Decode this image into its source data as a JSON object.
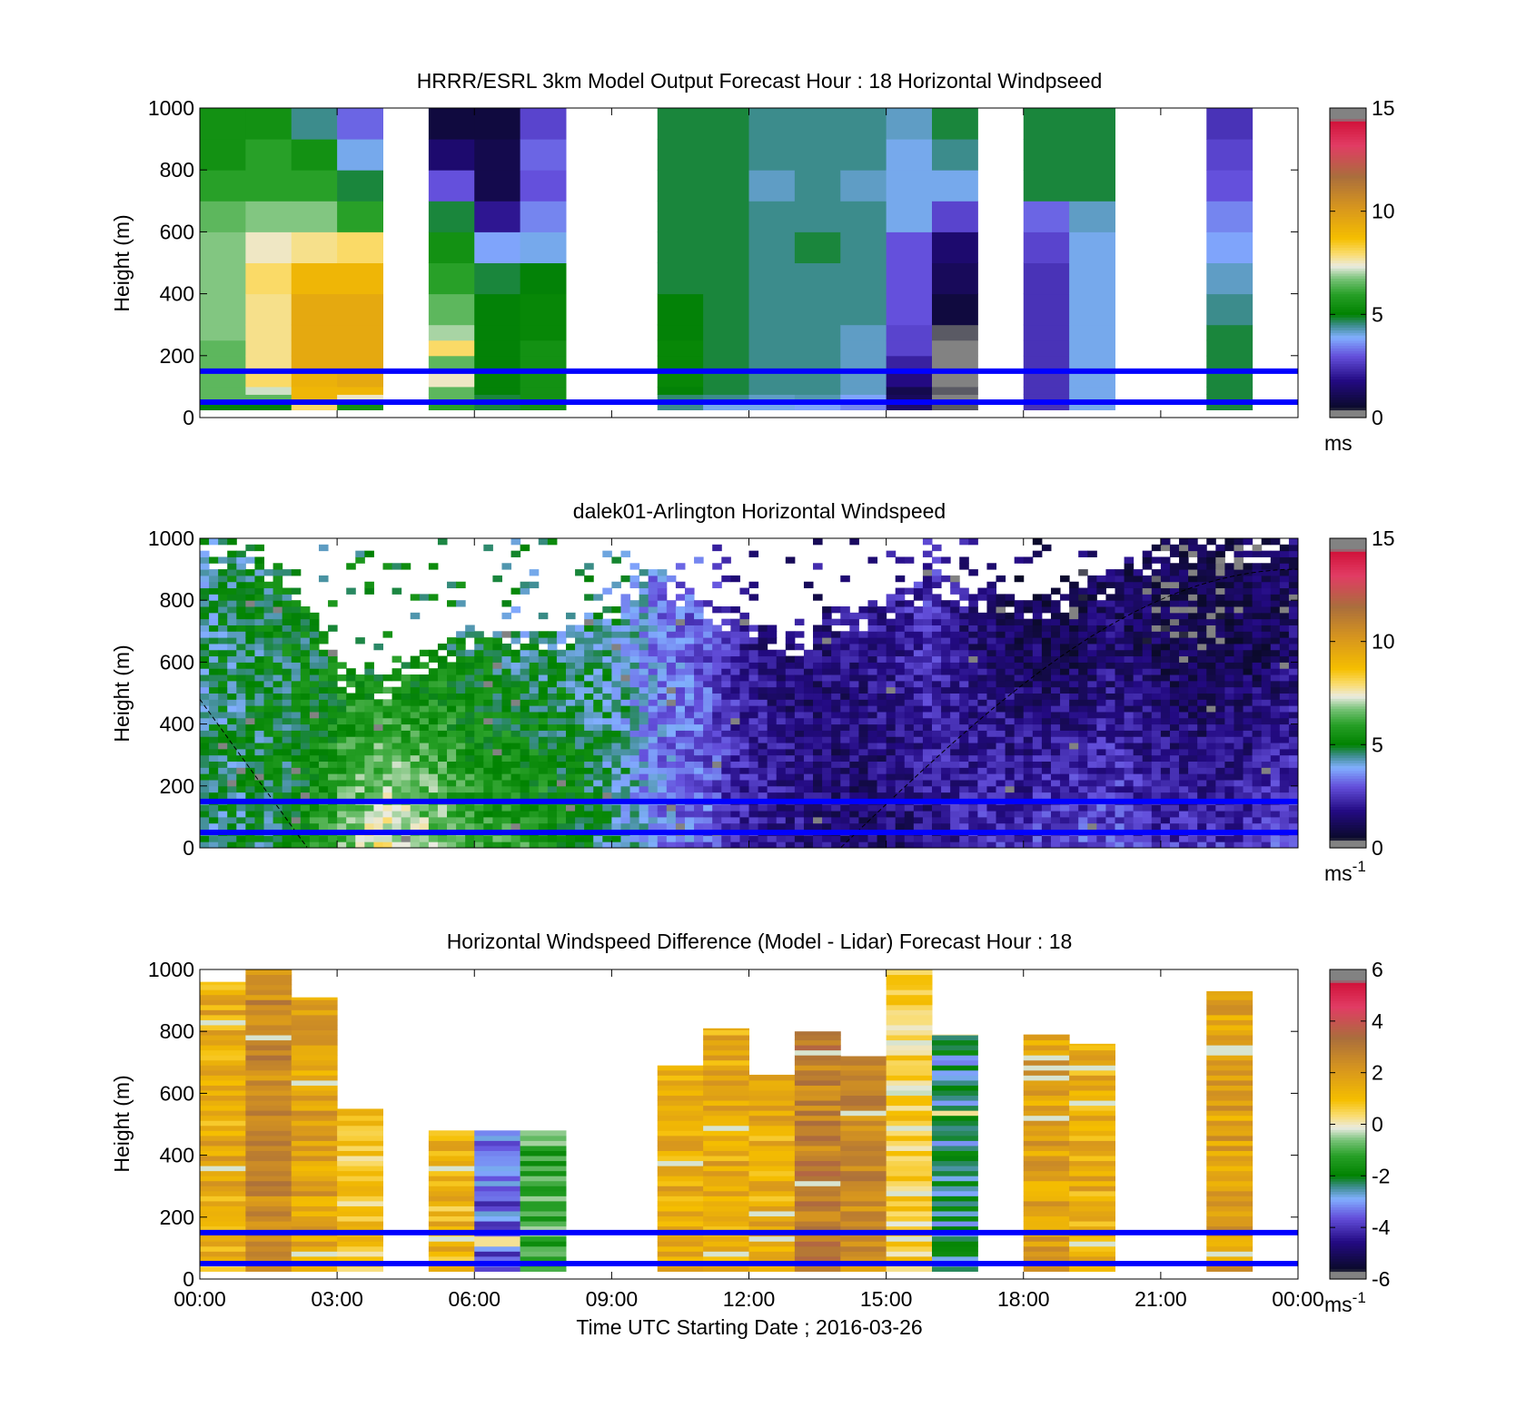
{
  "figure": {
    "xlabel": "Time UTC  Starting Date ; 2016-03-26",
    "xticks": [
      "00:00",
      "03:00",
      "06:00",
      "09:00",
      "12:00",
      "15:00",
      "18:00",
      "21:00",
      "00:00"
    ]
  },
  "chart_data": [
    {
      "type": "heatmap",
      "title": "HRRR/ESRL 3km Model Output   Forecast Hour : 18 Horizontal Windpseed",
      "ylabel": "Height (m)",
      "xlim_hours": [
        0,
        24
      ],
      "ylim": [
        0,
        1000
      ],
      "yticks": [
        "0",
        "200",
        "400",
        "600",
        "800",
        "1000"
      ],
      "colorbar": {
        "min": 0,
        "max": 15,
        "ticks": [
          "0",
          "5",
          "10",
          "15"
        ],
        "unit": "ms",
        "unit_sup": ""
      },
      "colors": {
        "reference_lines": "#0000ff"
      },
      "reference_lines_m": [
        50,
        150
      ],
      "levels_m": [
        25,
        50,
        75,
        100,
        150,
        200,
        250,
        300,
        400,
        500,
        600,
        700,
        800,
        900,
        1000
      ],
      "columns": [
        {
          "hour": 0,
          "speeds": [
            3.0,
            5.0,
            6.5,
            6.5,
            6.5,
            6.5,
            6.5,
            6.8,
            6.8,
            6.8,
            6.8,
            6.5,
            6.0,
            5.5,
            5.5
          ]
        },
        {
          "hour": 1,
          "speeds": [
            3.5,
            5.0,
            6.5,
            7.2,
            8.0,
            7.8,
            7.8,
            7.8,
            7.8,
            8.0,
            7.5,
            6.8,
            6.0,
            6.0,
            5.5
          ]
        },
        {
          "hour": 2,
          "speeds": [
            4.0,
            8.0,
            9.0,
            9.0,
            9.2,
            9.5,
            9.5,
            9.5,
            9.5,
            9.0,
            7.8,
            6.8,
            6.0,
            5.5,
            4.5
          ]
        },
        {
          "hour": 3,
          "speeds": [
            4.5,
            5.5,
            7.5,
            9.0,
            9.5,
            9.5,
            9.5,
            9.5,
            9.5,
            9.0,
            8.0,
            6.0,
            4.8,
            4.0,
            3.2
          ]
        },
        {
          "hour": 5,
          "speeds": [
            5.5,
            6.0,
            6.5,
            6.5,
            7.5,
            6.5,
            8.0,
            7.0,
            6.5,
            6.0,
            5.5,
            4.8,
            3.0,
            1.5,
            0.8
          ]
        },
        {
          "hour": 6,
          "speeds": [
            5.0,
            4.8,
            4.8,
            5.0,
            5.0,
            5.0,
            5.0,
            5.0,
            5.0,
            4.8,
            3.8,
            2.0,
            1.0,
            1.0,
            0.8
          ]
        },
        {
          "hour": 7,
          "speeds": [
            3.0,
            5.5,
            5.5,
            5.5,
            5.5,
            5.5,
            5.5,
            5.2,
            5.2,
            5.0,
            4.0,
            3.5,
            3.0,
            3.2,
            2.8
          ]
        },
        {
          "hour": 10,
          "speeds": [
            3.5,
            4.5,
            4.6,
            5.0,
            5.2,
            5.2,
            5.2,
            5.0,
            5.0,
            4.8,
            4.8,
            4.8,
            4.8,
            4.8,
            4.8
          ]
        },
        {
          "hour": 11,
          "speeds": [
            3.0,
            4.0,
            4.5,
            4.8,
            4.8,
            4.8,
            4.8,
            4.8,
            4.8,
            4.8,
            4.8,
            4.8,
            4.8,
            4.8,
            4.8
          ]
        },
        {
          "hour": 12,
          "speeds": [
            3.5,
            4.0,
            4.2,
            4.5,
            4.5,
            4.5,
            4.5,
            4.5,
            4.5,
            4.5,
            4.5,
            4.5,
            4.2,
            4.5,
            4.5
          ]
        },
        {
          "hour": 13,
          "speeds": [
            3.2,
            3.8,
            4.3,
            4.5,
            4.5,
            4.5,
            4.5,
            4.5,
            4.5,
            4.5,
            4.8,
            4.5,
            4.5,
            4.5,
            4.5
          ]
        },
        {
          "hour": 14,
          "speeds": [
            3.0,
            3.5,
            3.8,
            4.2,
            4.2,
            4.2,
            4.2,
            4.2,
            4.5,
            4.5,
            4.5,
            4.5,
            4.2,
            4.5,
            4.5
          ]
        },
        {
          "hour": 15,
          "speeds": [
            2.5,
            1.5,
            1.2,
            1.0,
            1.8,
            2.2,
            2.8,
            2.8,
            3.0,
            3.0,
            3.0,
            4.0,
            4.0,
            4.0,
            4.2
          ]
        },
        {
          "hour": 16,
          "speeds": [
            0.8,
            0.4,
            0.3,
            0.4,
            0.3,
            0.2,
            0.3,
            0.4,
            0.8,
            1.2,
            1.5,
            2.8,
            4.0,
            4.5,
            4.8
          ]
        },
        {
          "hour": 18,
          "speeds": [
            2.5,
            2.5,
            2.5,
            2.5,
            2.5,
            2.5,
            2.5,
            2.5,
            2.5,
            2.5,
            2.8,
            3.2,
            4.8,
            4.8,
            4.8
          ]
        },
        {
          "hour": 19,
          "speeds": [
            4.0,
            4.0,
            4.0,
            4.0,
            4.0,
            4.0,
            4.0,
            4.0,
            4.0,
            4.0,
            4.0,
            4.2,
            4.8,
            4.8,
            4.8
          ]
        },
        {
          "hour": 22,
          "speeds": [
            4.8,
            4.8,
            4.8,
            4.8,
            4.8,
            4.8,
            4.8,
            4.8,
            4.5,
            4.2,
            3.8,
            3.5,
            3.0,
            2.8,
            2.5
          ]
        }
      ]
    },
    {
      "type": "heatmap",
      "title": "dalek01-Arlington  Horizontal Windspeed",
      "ylabel": "Height (m)",
      "xlim_hours": [
        0,
        24
      ],
      "ylim": [
        0,
        1000
      ],
      "yticks": [
        "0",
        "200",
        "400",
        "600",
        "800",
        "1000"
      ],
      "colorbar": {
        "min": 0,
        "max": 15,
        "ticks": [
          "0",
          "5",
          "10",
          "15"
        ],
        "unit": "ms",
        "unit_sup": "-1"
      },
      "colors": {
        "reference_lines": "#0000ff"
      },
      "reference_lines_m": [
        50,
        150
      ],
      "time_anchor_hours": [
        0,
        2,
        3,
        4,
        5,
        6,
        7,
        8,
        9,
        10,
        11,
        12,
        13,
        14,
        15,
        16,
        17,
        18,
        19,
        20,
        21,
        22,
        23,
        24
      ],
      "low_level_speed": [
        4.5,
        5.0,
        6.5,
        7.5,
        7.0,
        6.0,
        6.0,
        5.5,
        4.5,
        3.5,
        3.2,
        2.2,
        2.0,
        1.5,
        1.5,
        1.8,
        2.5,
        2.5,
        3.0,
        3.0,
        2.5,
        2.5,
        2.5,
        3.0
      ],
      "upper_level_speed": [
        4.5,
        5.0,
        5.0,
        5.0,
        5.0,
        5.0,
        4.5,
        4.5,
        4.5,
        3.5,
        3.0,
        2.0,
        1.5,
        1.8,
        2.0,
        2.5,
        1.5,
        1.2,
        1.0,
        1.5,
        1.0,
        0.8,
        1.0,
        1.5
      ],
      "data_top_m": [
        1000,
        900,
        600,
        550,
        650,
        700,
        700,
        700,
        800,
        900,
        800,
        750,
        700,
        750,
        800,
        900,
        850,
        800,
        850,
        900,
        1000,
        1000,
        1000,
        1000
      ]
    },
    {
      "type": "heatmap",
      "title": "Horizontal Windspeed Difference (Model - Lidar) Forecast Hour : 18",
      "ylabel": "Height (m)",
      "xlim_hours": [
        0,
        24
      ],
      "ylim": [
        0,
        1000
      ],
      "yticks": [
        "0",
        "200",
        "400",
        "600",
        "800",
        "1000"
      ],
      "colorbar": {
        "min": -6,
        "max": 6,
        "ticks": [
          "-6",
          "-4",
          "-2",
          "0",
          "2",
          "4",
          "6"
        ],
        "unit": "ms",
        "unit_sup": "-1"
      },
      "colors": {
        "reference_lines": "#0000ff"
      },
      "reference_lines_m": [
        50,
        150
      ],
      "columns": [
        {
          "hour": 0,
          "top_m": 960,
          "base_diff": 1.5
        },
        {
          "hour": 1,
          "top_m": 1000,
          "base_diff": 2.5
        },
        {
          "hour": 2,
          "top_m": 910,
          "base_diff": 1.8
        },
        {
          "hour": 3,
          "top_m": 550,
          "base_diff": 0.8
        },
        {
          "hour": 5,
          "top_m": 480,
          "base_diff": 1.2
        },
        {
          "hour": 6,
          "top_m": 480,
          "base_diff": -3.5
        },
        {
          "hour": 7,
          "top_m": 480,
          "base_diff": -1.2
        },
        {
          "hour": 10,
          "top_m": 690,
          "base_diff": 1.5
        },
        {
          "hour": 11,
          "top_m": 810,
          "base_diff": 1.5
        },
        {
          "hour": 12,
          "top_m": 660,
          "base_diff": 1.5
        },
        {
          "hour": 13,
          "top_m": 800,
          "base_diff": 2.8
        },
        {
          "hour": 14,
          "top_m": 720,
          "base_diff": 2.5
        },
        {
          "hour": 15,
          "top_m": 1000,
          "base_diff": 0.5
        },
        {
          "hour": 16,
          "top_m": 790,
          "base_diff": -2.5
        },
        {
          "hour": 18,
          "top_m": 790,
          "base_diff": 1.8
        },
        {
          "hour": 19,
          "top_m": 760,
          "base_diff": 1.5
        },
        {
          "hour": 22,
          "top_m": 930,
          "base_diff": 1.8
        }
      ]
    }
  ]
}
